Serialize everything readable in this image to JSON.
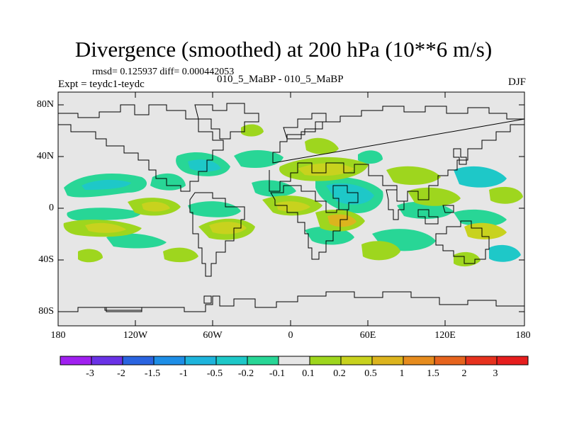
{
  "title": "Divergence (smoothed) at 200 hPa (10**6 m/s)",
  "stats": "rmsd= 0.125937 diff= 0.000442053",
  "experiment": "Expt = teydc1-teydc",
  "case_label": "010_5_MaBP - 010_5_MaBP",
  "season": "DJF",
  "lat_ticks": [
    "80N",
    "40N",
    "0",
    "40S",
    "80S"
  ],
  "lon_ticks": [
    "180",
    "120W",
    "60W",
    "0",
    "60E",
    "120E",
    "180"
  ],
  "colorbar": {
    "labels": [
      "-3",
      "-2",
      "-1.5",
      "-1",
      "-0.5",
      "-0.2",
      "-0.1",
      "0.1",
      "0.2",
      "0.5",
      "1",
      "1.5",
      "2",
      "3"
    ],
    "colors": [
      "#a020f0",
      "#6a32e6",
      "#2a64e0",
      "#1e8ee6",
      "#1eb4dc",
      "#1ec8c8",
      "#28d696",
      "#e6e6e6",
      "#9ed61e",
      "#c8d21e",
      "#dcb41e",
      "#e68c1e",
      "#e6641e",
      "#e6321e",
      "#e61e1e"
    ]
  },
  "map_background": "#e6e6e6"
}
